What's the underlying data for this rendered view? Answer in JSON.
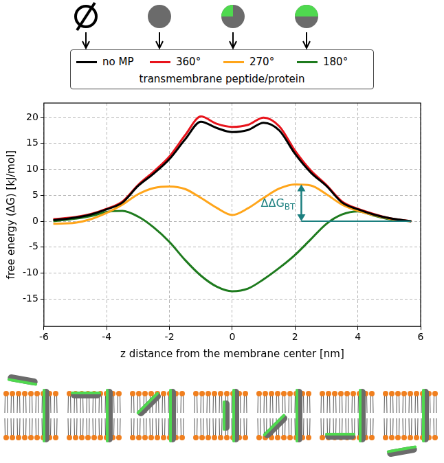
{
  "chart_data": {
    "type": "line",
    "x": [
      -5.7,
      -5,
      -4.5,
      -4,
      -3.5,
      -3,
      -2.5,
      -2,
      -1.5,
      -1,
      -0.5,
      0,
      0.5,
      1,
      1.5,
      2,
      2.5,
      3,
      3.5,
      4,
      4.5,
      5,
      5.7
    ],
    "series": [
      {
        "name": "no MP",
        "color": "#000000",
        "values": [
          0.2,
          0.7,
          1.3,
          2.3,
          3.6,
          6.8,
          9.2,
          12.0,
          15.8,
          19.2,
          18.0,
          17.2,
          17.6,
          19.0,
          17.5,
          13.0,
          9.4,
          6.8,
          3.6,
          2.3,
          1.3,
          0.6,
          0.0
        ]
      },
      {
        "name": "360°",
        "color": "#e8141c",
        "values": [
          0.4,
          0.8,
          1.4,
          2.4,
          3.8,
          7.0,
          9.6,
          12.5,
          16.6,
          20.2,
          18.8,
          18.2,
          18.6,
          20.0,
          18.3,
          13.6,
          9.8,
          7.0,
          3.8,
          2.4,
          1.4,
          0.6,
          0.0
        ]
      },
      {
        "name": "270°",
        "color": "#ffa51a",
        "values": [
          -0.5,
          -0.3,
          0.4,
          1.6,
          3.2,
          5.2,
          6.4,
          6.7,
          6.2,
          4.5,
          2.6,
          1.2,
          2.5,
          4.5,
          6.3,
          7.1,
          6.9,
          5.2,
          3.2,
          2.0,
          1.2,
          0.5,
          0.0
        ]
      },
      {
        "name": "180°",
        "color": "#1e7b1e",
        "values": [
          0.0,
          0.5,
          1.0,
          1.8,
          2.0,
          0.9,
          -1.2,
          -4.0,
          -7.5,
          -10.5,
          -12.6,
          -13.5,
          -13.0,
          -11.2,
          -9.0,
          -6.5,
          -3.5,
          -0.5,
          1.3,
          1.9,
          1.1,
          0.4,
          0.0
        ]
      }
    ],
    "xlabel": "z distance from the membrane center [nm]",
    "ylabel": "free energy (ΔG) [kJ/mol]",
    "xlim": [
      -6,
      6
    ],
    "xticks": [
      -6,
      -4,
      -2,
      0,
      2,
      4,
      6
    ],
    "ylim": [
      -20.3,
      22.8
    ],
    "yticks": [
      -15,
      -10,
      -5,
      0,
      5,
      10,
      15,
      20
    ],
    "grid": true,
    "legend": "top",
    "legend_title": "transmembrane peptide/protein",
    "annotations": [
      {
        "text": "ΔΔG",
        "subscript": "BT",
        "x": 2.2,
        "y": [
          0,
          7.1
        ],
        "x_end": 5.7,
        "color": "#1b7f7f"
      }
    ]
  }
}
